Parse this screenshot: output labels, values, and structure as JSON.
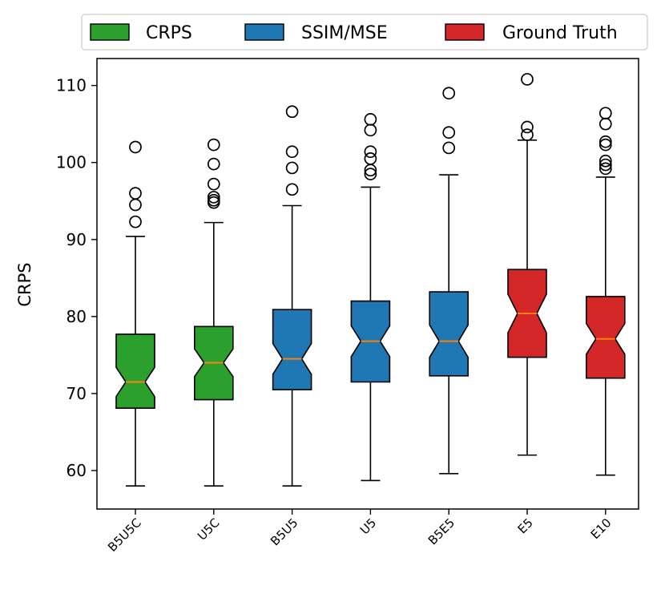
{
  "chart_data": {
    "type": "boxplot",
    "notched": true,
    "title": "",
    "xlabel": "",
    "ylabel": "CRPS",
    "ylim": [
      55,
      113.5
    ],
    "yticks": [
      60,
      70,
      80,
      90,
      100,
      110
    ],
    "grid": false,
    "legend_position": "top (above plot)",
    "legend": [
      {
        "label": "CRPS",
        "color": "#2ca02c"
      },
      {
        "label": "SSIM/MSE",
        "color": "#1f77b4"
      },
      {
        "label": "Ground Truth",
        "color": "#d62728"
      }
    ],
    "median_color": "#ff7f0e",
    "categories": [
      "B5U5C",
      "U5C",
      "B5U5",
      "U5",
      "B5E5",
      "E5",
      "E10"
    ],
    "boxes": [
      {
        "label": "B5U5C",
        "group": "CRPS",
        "color": "#2ca02c",
        "whisker_low": 58.0,
        "q1": 68.1,
        "median": 71.5,
        "q3": 77.7,
        "whisker_high": 90.4,
        "notch_low": 69.6,
        "notch_high": 73.4,
        "outliers": [
          92.3,
          94.5,
          96.0,
          102.0
        ]
      },
      {
        "label": "U5C",
        "group": "CRPS",
        "color": "#2ca02c",
        "whisker_low": 58.0,
        "q1": 69.2,
        "median": 74.0,
        "q3": 78.7,
        "whisker_high": 92.2,
        "notch_low": 72.2,
        "notch_high": 75.8,
        "outliers": [
          94.8,
          95.1,
          95.5,
          97.2,
          99.8,
          102.3
        ]
      },
      {
        "label": "B5U5",
        "group": "SSIM/MSE",
        "color": "#1f77b4",
        "whisker_low": 58.0,
        "q1": 70.5,
        "median": 74.5,
        "q3": 80.9,
        "whisker_high": 94.4,
        "notch_low": 72.5,
        "notch_high": 76.5,
        "outliers": [
          96.5,
          99.3,
          101.4,
          106.6
        ]
      },
      {
        "label": "U5",
        "group": "SSIM/MSE",
        "color": "#1f77b4",
        "whisker_low": 58.7,
        "q1": 71.5,
        "median": 76.8,
        "q3": 82.0,
        "whisker_high": 96.8,
        "notch_low": 74.8,
        "notch_high": 78.8,
        "outliers": [
          98.5,
          99.0,
          100.5,
          101.4,
          104.2,
          105.6
        ]
      },
      {
        "label": "B5E5",
        "group": "SSIM/MSE",
        "color": "#1f77b4",
        "whisker_low": 59.6,
        "q1": 72.3,
        "median": 76.8,
        "q3": 83.2,
        "whisker_high": 98.4,
        "notch_low": 74.7,
        "notch_high": 78.9,
        "outliers": [
          101.9,
          103.9,
          109.0
        ]
      },
      {
        "label": "E5",
        "group": "Ground Truth",
        "color": "#d62728",
        "whisker_low": 62.0,
        "q1": 74.7,
        "median": 80.4,
        "q3": 86.1,
        "whisker_high": 102.9,
        "notch_low": 77.9,
        "notch_high": 82.9,
        "outliers": [
          103.6,
          104.6,
          110.8
        ]
      },
      {
        "label": "E10",
        "group": "Ground Truth",
        "color": "#d62728",
        "whisker_low": 59.4,
        "q1": 72.0,
        "median": 77.1,
        "q3": 82.6,
        "whisker_high": 98.1,
        "notch_low": 75.1,
        "notch_high": 79.1,
        "outliers": [
          99.2,
          99.7,
          100.2,
          102.3,
          102.7,
          105.0,
          106.4
        ]
      }
    ]
  }
}
